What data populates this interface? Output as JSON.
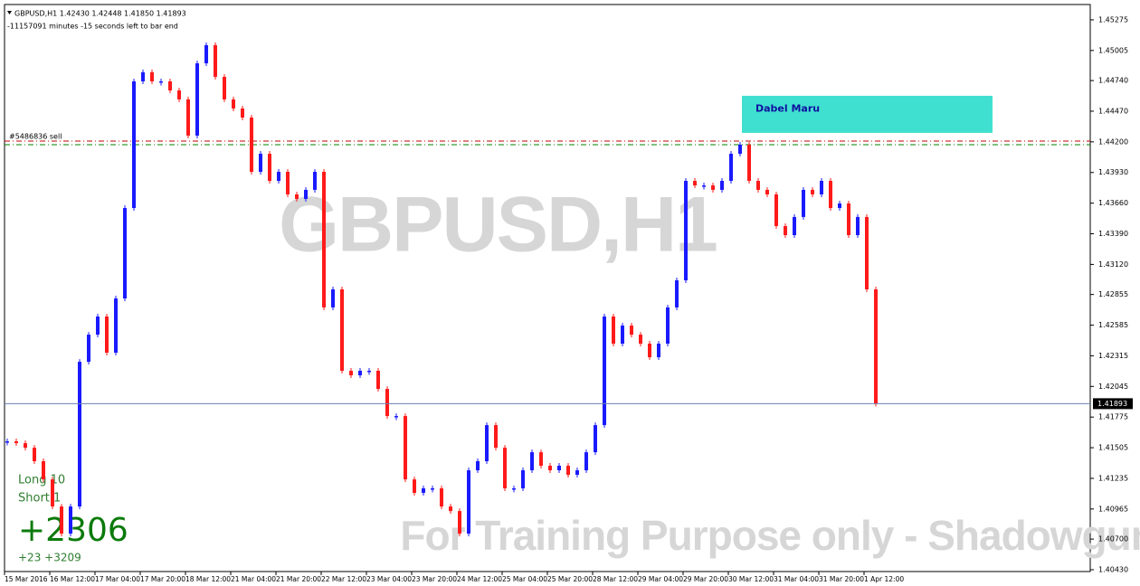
{
  "chart_data": {
    "type": "candlestick",
    "title": "GBPUSD,H1  1.42430 1.42448 1.41850 1.41893",
    "subtitle": "-11157091 minutes -15 seconds left to bar end",
    "watermark": "GBPUSD,H1",
    "footer_watermark": "For Training Purpose only - ShadowgunFX",
    "up_color": "#1a1aff",
    "down_color": "#ff1a1a",
    "closes": [
      1.41561,
      1.41545,
      1.41505,
      1.41386,
      1.41226,
      1.40987,
      1.40748,
      1.40987,
      1.42262,
      1.42501,
      1.42661,
      1.42342,
      1.4282,
      1.43617,
      1.44733,
      1.44813,
      1.44733,
      1.44733,
      1.44653,
      1.44574,
      1.44255,
      1.44892,
      1.45052,
      1.44773,
      1.44574,
      1.44494,
      1.44414,
      1.43936,
      1.44095,
      1.43856,
      1.43936,
      1.43737,
      1.43697,
      1.43777,
      1.43936,
      1.42741,
      1.429,
      1.42183,
      1.42143,
      1.42183,
      1.42183,
      1.42023,
      1.41784,
      1.41784,
      1.41226,
      1.41107,
      1.41147,
      1.41147,
      1.40987,
      1.40947,
      1.40748,
      1.41306,
      1.41386,
      1.41704,
      1.41505,
      1.41147,
      1.41147,
      1.41306,
      1.41465,
      1.41346,
      1.41306,
      1.41346,
      1.41266,
      1.41306,
      1.41465,
      1.41704,
      1.42661,
      1.42422,
      1.42581,
      1.42501,
      1.42422,
      1.42302,
      1.42422,
      1.42741,
      1.4298,
      1.43856,
      1.43816,
      1.43816,
      1.43777,
      1.43856,
      1.44095,
      1.44175,
      1.43856,
      1.43777,
      1.43737,
      1.43458,
      1.43378,
      1.43538,
      1.43777,
      1.43737,
      1.43856,
      1.43617,
      1.43657,
      1.43378,
      1.43538,
      1.429,
      1.41893
    ],
    "ylim": [
      1.40414,
      1.4541
    ],
    "yticks": [
      1.45275,
      1.45005,
      {
        "value": 1.4474,
        "label": "1.44740"
      },
      {
        "value": 1.4447,
        "label": "1.44470"
      },
      {
        "value": 1.442,
        "label": "1.44200"
      },
      {
        "value": 1.4393,
        "label": "1.43930"
      },
      {
        "value": 1.4366,
        "label": "1.43660"
      },
      {
        "value": 1.4339,
        "label": "1.43390"
      },
      {
        "value": 1.4312,
        "label": "1.43120"
      },
      1.42855,
      1.42585,
      1.42315,
      1.42045,
      1.41775,
      1.41505,
      1.41235,
      1.40965,
      {
        "value": 1.407,
        "label": "1.40700"
      },
      {
        "value": 1.4043,
        "label": "1.40430"
      }
    ],
    "current_price": 1.41893,
    "time_labels": [
      "15 Mar 2016",
      "16 Mar 12:00",
      "17 Mar 04:00",
      "17 Mar 20:00",
      "18 Mar 12:00",
      "21 Mar 04:00",
      "21 Mar 20:00",
      "22 Mar 12:00",
      "23 Mar 04:00",
      "23 Mar 20:00",
      "24 Mar 12:00",
      "25 Mar 04:00",
      "25 Mar 20:00",
      "28 Mar 12:00",
      "29 Mar 04:00",
      "29 Mar 20:00",
      "30 Mar 12:00",
      "31 Mar 04:00",
      "31 Mar 20:00",
      "1 Apr 12:00"
    ],
    "levels": [
      {
        "label": "#5486836 sell",
        "value": 1.44207,
        "color": "#c00000"
      },
      {
        "value": 1.44175,
        "color": "#008000"
      }
    ],
    "zone": {
      "label": "Dabel Maru",
      "top": 1.44606,
      "bottom": 1.44279,
      "color": "#40e0d0"
    },
    "stats": {
      "long": "Long 10",
      "short": "Short 1",
      "profit": "+2306",
      "detail": "+23 +3209"
    }
  }
}
